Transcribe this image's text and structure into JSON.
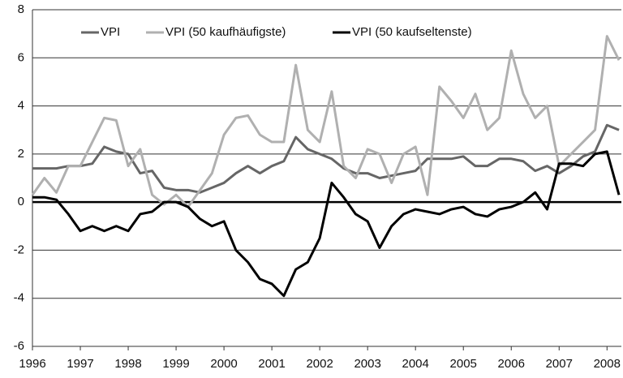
{
  "chart_data": {
    "type": "line",
    "x": [
      1996,
      1996.25,
      1996.5,
      1996.75,
      1997,
      1997.25,
      1997.5,
      1997.75,
      1998,
      1998.25,
      1998.5,
      1998.75,
      1999,
      1999.25,
      1999.5,
      1999.75,
      2000,
      2000.25,
      2000.5,
      2000.75,
      2001,
      2001.25,
      2001.5,
      2001.75,
      2002,
      2002.25,
      2002.5,
      2002.75,
      2003,
      2003.25,
      2003.5,
      2003.75,
      2004,
      2004.25,
      2004.5,
      2004.75,
      2005,
      2005.25,
      2005.5,
      2005.75,
      2006,
      2006.25,
      2006.5,
      2006.75,
      2007,
      2007.25,
      2007.5,
      2007.75,
      2008,
      2008.25
    ],
    "series": [
      {
        "name": "VPI",
        "color": "#666666",
        "values": [
          1.4,
          1.4,
          1.4,
          1.5,
          1.5,
          1.6,
          2.3,
          2.1,
          2.0,
          1.2,
          1.3,
          0.6,
          0.5,
          0.5,
          0.4,
          0.6,
          0.8,
          1.2,
          1.5,
          1.2,
          1.5,
          1.7,
          2.7,
          2.2,
          2.0,
          1.8,
          1.4,
          1.2,
          1.2,
          1.0,
          1.1,
          1.2,
          1.3,
          1.8,
          1.8,
          1.8,
          1.9,
          1.5,
          1.5,
          1.8,
          1.8,
          1.7,
          1.3,
          1.5,
          1.2,
          1.5,
          1.9,
          2.1,
          3.2,
          3.0
        ]
      },
      {
        "name": "VPI (50 kaufhäufigste)",
        "color": "#b0b0b0",
        "values": [
          0.3,
          1.0,
          0.4,
          1.5,
          1.5,
          2.5,
          3.5,
          3.4,
          1.5,
          2.2,
          0.3,
          -0.1,
          0.3,
          -0.2,
          0.5,
          1.2,
          2.8,
          3.5,
          3.6,
          2.8,
          2.5,
          2.5,
          5.7,
          3.0,
          2.5,
          4.6,
          1.5,
          1.0,
          2.2,
          2.0,
          0.8,
          2.0,
          2.3,
          0.3,
          4.8,
          4.2,
          3.5,
          4.5,
          3.0,
          3.5,
          6.3,
          4.5,
          3.5,
          4.0,
          1.5,
          2.0,
          2.5,
          3.0,
          6.9,
          5.9
        ]
      },
      {
        "name": "VPI (50 kaufseltenste)",
        "color": "#000000",
        "values": [
          0.2,
          0.2,
          0.1,
          -0.5,
          -1.2,
          -1.0,
          -1.2,
          -1.0,
          -1.2,
          -0.5,
          -0.4,
          0.0,
          0.0,
          -0.2,
          -0.7,
          -1.0,
          -0.8,
          -2.0,
          -2.5,
          -3.2,
          -3.4,
          -3.9,
          -2.8,
          -2.5,
          -1.5,
          0.8,
          0.2,
          -0.5,
          -0.8,
          -1.9,
          -1.0,
          -0.5,
          -0.3,
          -0.4,
          -0.5,
          -0.3,
          -0.2,
          -0.5,
          -0.6,
          -0.3,
          -0.2,
          0.0,
          0.4,
          -0.3,
          1.6,
          1.6,
          1.5,
          2.0,
          2.1,
          0.3
        ]
      }
    ],
    "xlim": [
      1996,
      2008.3
    ],
    "xticks": [
      1996,
      1997,
      1998,
      1999,
      2000,
      2001,
      2002,
      2003,
      2004,
      2005,
      2006,
      2007,
      2008
    ],
    "ylim": [
      -6,
      8
    ],
    "yticks": [
      -6,
      -4,
      -2,
      0,
      2,
      4,
      6,
      8
    ],
    "grid": true,
    "legend": "top"
  }
}
